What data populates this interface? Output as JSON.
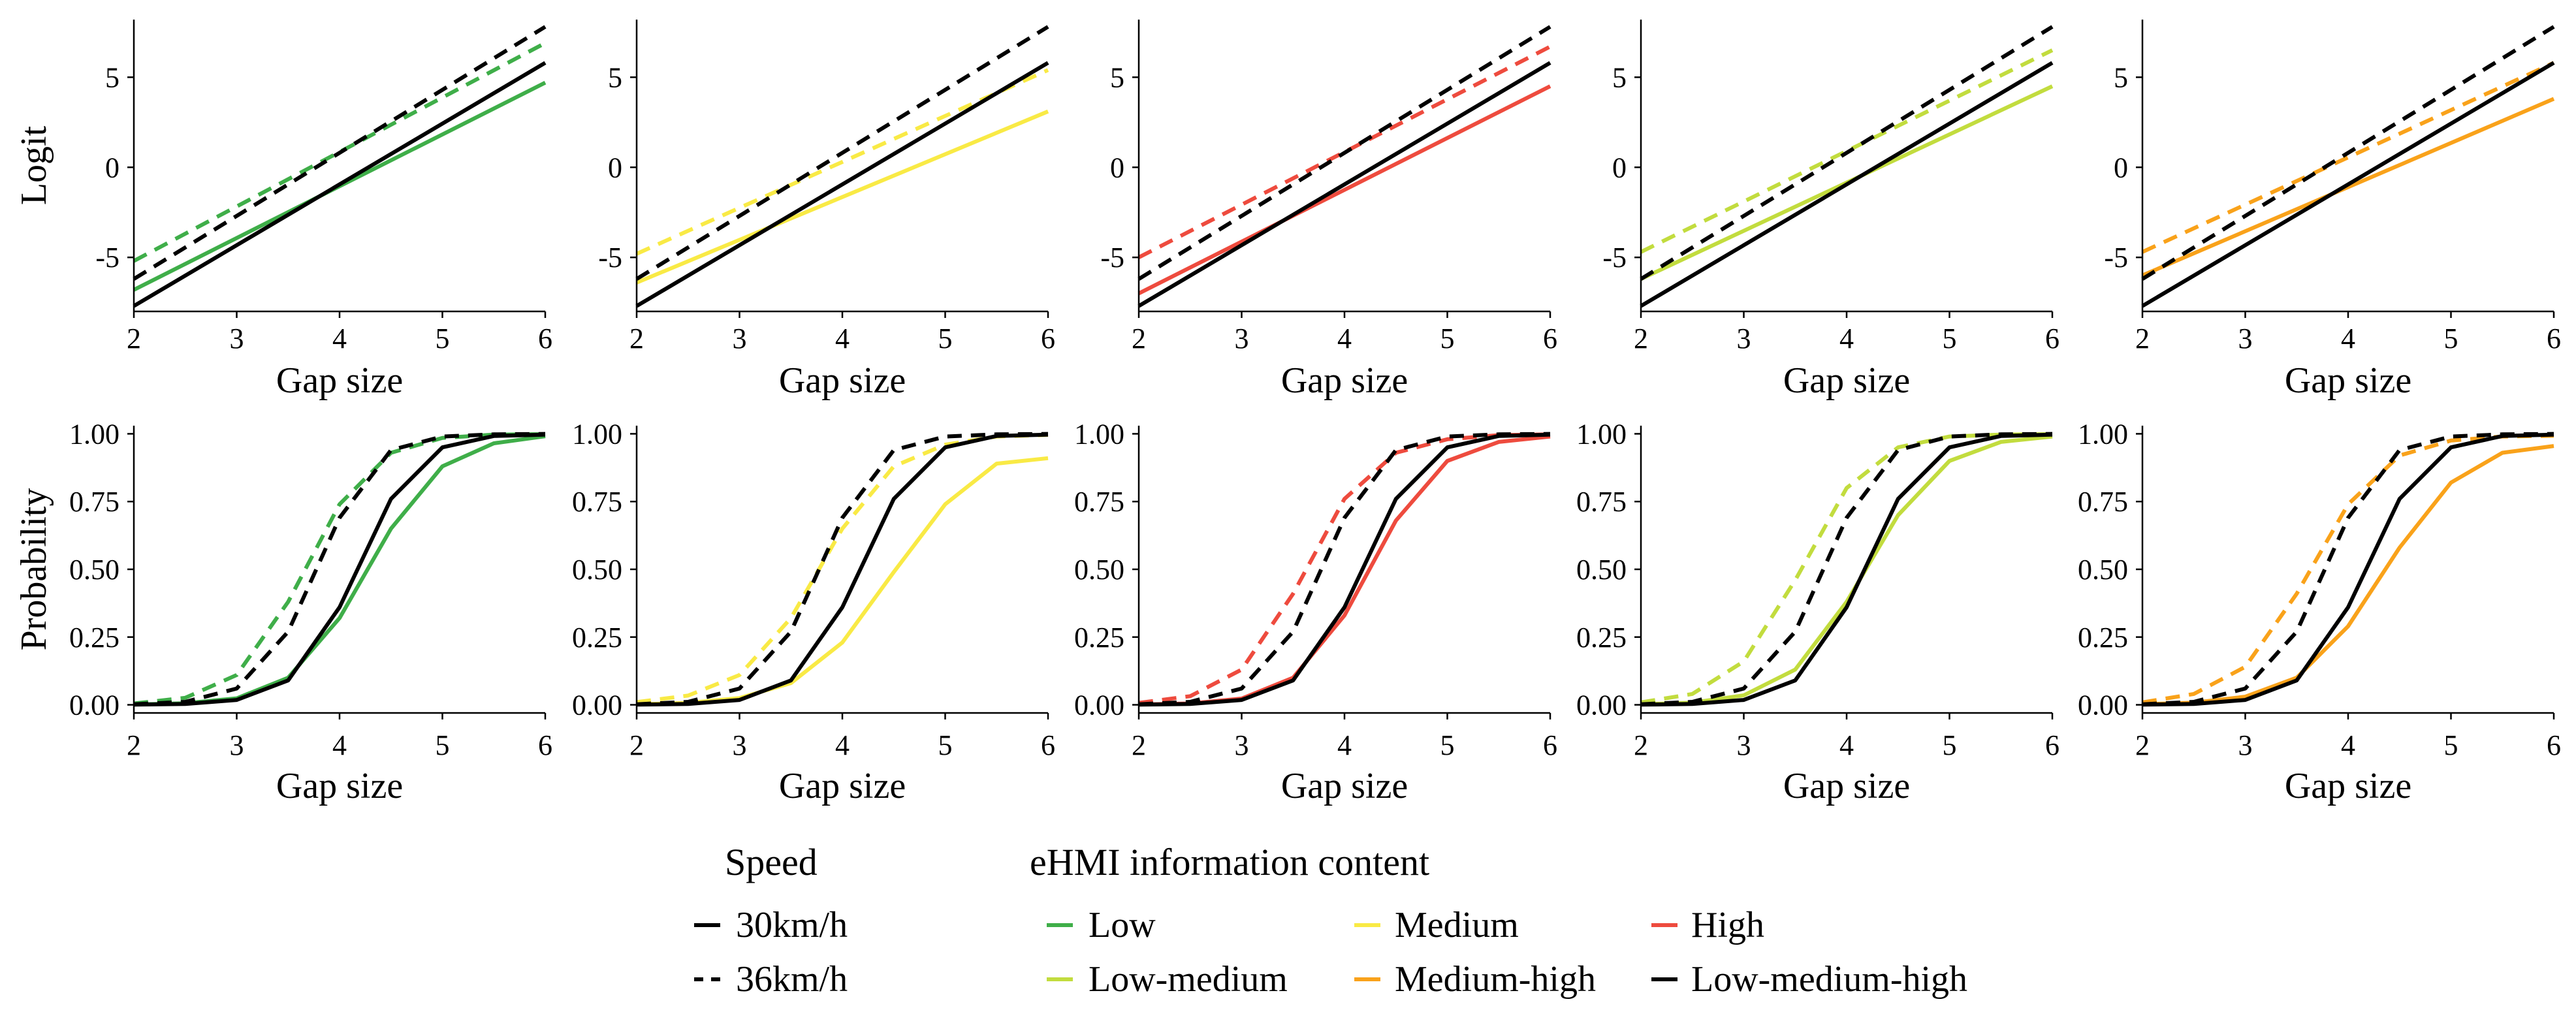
{
  "figure": {
    "legend": {
      "speed_title": "Speed",
      "ehmi_title": "eHMI information content",
      "speed_items": [
        {
          "label": "30km/h",
          "style": "solid"
        },
        {
          "label": "36km/h",
          "style": "dashed"
        }
      ],
      "ehmi_items": [
        {
          "label": "Low",
          "color": "#3fae49"
        },
        {
          "label": "Medium",
          "color": "#f9ea45"
        },
        {
          "label": "High",
          "color": "#ee4b3e"
        },
        {
          "label": "Low-medium",
          "color": "#c2dc3e"
        },
        {
          "label": "Medium-high",
          "color": "#f9a21a"
        },
        {
          "label": "Low-medium-high",
          "color": "#000000"
        }
      ]
    }
  },
  "chart_data": [
    {
      "type": "line",
      "panel": "logit-low",
      "series_label": "Low",
      "color": "#3fae49",
      "xlabel": "Gap size",
      "ylabel": "Logit",
      "xlim": [
        2,
        6
      ],
      "ylim": [
        -8,
        8.2
      ],
      "xticks": [
        2,
        3,
        4,
        5,
        6
      ],
      "yticks": [
        -5,
        0,
        5
      ],
      "ytick_labels": [
        "-5",
        "0",
        "5"
      ],
      "series": [
        {
          "name": "Low 30km/h",
          "speed": "30km/h",
          "x": [
            2,
            6
          ],
          "y": [
            -6.8,
            4.7
          ]
        },
        {
          "name": "Low 36km/h",
          "speed": "36km/h",
          "x": [
            2,
            6
          ],
          "y": [
            -5.2,
            6.9
          ]
        },
        {
          "name": "Low-medium-high 30km/h",
          "speed": "30km/h",
          "x": [
            2,
            6
          ],
          "y": [
            -7.7,
            5.8
          ]
        },
        {
          "name": "Low-medium-high 36km/h",
          "speed": "36km/h",
          "x": [
            2,
            6
          ],
          "y": [
            -6.2,
            7.8
          ]
        }
      ]
    },
    {
      "type": "line",
      "panel": "logit-medium",
      "series_label": "Medium",
      "color": "#f9ea45",
      "xlabel": "Gap size",
      "ylabel": "",
      "xlim": [
        2,
        6
      ],
      "ylim": [
        -8,
        8.2
      ],
      "xticks": [
        2,
        3,
        4,
        5,
        6
      ],
      "yticks": [
        -5,
        0,
        5
      ],
      "ytick_labels": [
        "-5",
        "0",
        "5"
      ],
      "series": [
        {
          "name": "Medium 30km/h",
          "speed": "30km/h",
          "x": [
            2,
            6
          ],
          "y": [
            -6.4,
            3.1
          ]
        },
        {
          "name": "Medium 36km/h",
          "speed": "36km/h",
          "x": [
            2,
            6
          ],
          "y": [
            -4.8,
            5.4
          ]
        },
        {
          "name": "Low-medium-high 30km/h",
          "speed": "30km/h",
          "x": [
            2,
            6
          ],
          "y": [
            -7.7,
            5.8
          ]
        },
        {
          "name": "Low-medium-high 36km/h",
          "speed": "36km/h",
          "x": [
            2,
            6
          ],
          "y": [
            -6.2,
            7.8
          ]
        }
      ]
    },
    {
      "type": "line",
      "panel": "logit-high",
      "series_label": "High",
      "color": "#ee4b3e",
      "xlabel": "Gap size",
      "ylabel": "",
      "xlim": [
        2,
        6
      ],
      "ylim": [
        -8,
        8.2
      ],
      "xticks": [
        2,
        3,
        4,
        5,
        6
      ],
      "yticks": [
        -5,
        0,
        5
      ],
      "ytick_labels": [
        "-5",
        "0",
        "5"
      ],
      "series": [
        {
          "name": "High 30km/h",
          "speed": "30km/h",
          "x": [
            2,
            6
          ],
          "y": [
            -7.0,
            4.5
          ]
        },
        {
          "name": "High 36km/h",
          "speed": "36km/h",
          "x": [
            2,
            6
          ],
          "y": [
            -5.0,
            6.7
          ]
        },
        {
          "name": "Low-medium-high 30km/h",
          "speed": "30km/h",
          "x": [
            2,
            6
          ],
          "y": [
            -7.7,
            5.8
          ]
        },
        {
          "name": "Low-medium-high 36km/h",
          "speed": "36km/h",
          "x": [
            2,
            6
          ],
          "y": [
            -6.2,
            7.8
          ]
        }
      ]
    },
    {
      "type": "line",
      "panel": "logit-low-medium",
      "series_label": "Low-medium",
      "color": "#c2dc3e",
      "xlabel": "Gap size",
      "ylabel": "",
      "xlim": [
        2,
        6
      ],
      "ylim": [
        -8,
        8.2
      ],
      "xticks": [
        2,
        3,
        4,
        5,
        6
      ],
      "yticks": [
        -5,
        0,
        5
      ],
      "ytick_labels": [
        "-5",
        "0",
        "5"
      ],
      "series": [
        {
          "name": "Low-medium 30km/h",
          "speed": "30km/h",
          "x": [
            2,
            6
          ],
          "y": [
            -6.2,
            4.5
          ]
        },
        {
          "name": "Low-medium 36km/h",
          "speed": "36km/h",
          "x": [
            2,
            6
          ],
          "y": [
            -4.7,
            6.5
          ]
        },
        {
          "name": "Low-medium-high 30km/h",
          "speed": "30km/h",
          "x": [
            2,
            6
          ],
          "y": [
            -7.7,
            5.8
          ]
        },
        {
          "name": "Low-medium-high 36km/h",
          "speed": "36km/h",
          "x": [
            2,
            6
          ],
          "y": [
            -6.2,
            7.8
          ]
        }
      ]
    },
    {
      "type": "line",
      "panel": "logit-medium-high",
      "series_label": "Medium-high",
      "color": "#f9a21a",
      "xlabel": "Gap size",
      "ylabel": "",
      "xlim": [
        2,
        6
      ],
      "ylim": [
        -8,
        8.2
      ],
      "xticks": [
        2,
        3,
        4,
        5,
        6
      ],
      "yticks": [
        -5,
        0,
        5
      ],
      "ytick_labels": [
        "-5",
        "0",
        "5"
      ],
      "series": [
        {
          "name": "Medium-high 30km/h",
          "speed": "30km/h",
          "x": [
            2,
            6
          ],
          "y": [
            -6.0,
            3.8
          ]
        },
        {
          "name": "Medium-high 36km/h",
          "speed": "36km/h",
          "x": [
            2,
            6
          ],
          "y": [
            -4.7,
            5.8
          ]
        },
        {
          "name": "Low-medium-high 30km/h",
          "speed": "30km/h",
          "x": [
            2,
            6
          ],
          "y": [
            -7.7,
            5.8
          ]
        },
        {
          "name": "Low-medium-high 36km/h",
          "speed": "36km/h",
          "x": [
            2,
            6
          ],
          "y": [
            -6.2,
            7.8
          ]
        }
      ]
    },
    {
      "type": "line",
      "panel": "probability-low",
      "series_label": "Low",
      "color": "#3fae49",
      "xlabel": "Gap size",
      "ylabel": "Probability",
      "xlim": [
        2,
        6
      ],
      "ylim": [
        -0.03,
        1.03
      ],
      "xticks": [
        2,
        3,
        4,
        5,
        6
      ],
      "yticks": [
        0,
        0.25,
        0.5,
        0.75,
        1.0
      ],
      "ytick_labels": [
        "0.00",
        "0.25",
        "0.50",
        "0.75",
        "1.00"
      ],
      "series": [
        {
          "name": "Low 30km/h",
          "speed": "30km/h",
          "x": [
            2,
            2.5,
            3,
            3.5,
            4,
            4.5,
            5,
            5.5,
            6
          ],
          "y": [
            0.001,
            0.006,
            0.024,
            0.1,
            0.32,
            0.65,
            0.88,
            0.965,
            0.991
          ]
        },
        {
          "name": "Low 36km/h",
          "speed": "36km/h",
          "x": [
            2,
            2.5,
            3,
            3.5,
            4,
            4.5,
            5,
            5.5,
            6
          ],
          "y": [
            0.005,
            0.026,
            0.11,
            0.38,
            0.74,
            0.93,
            0.985,
            0.997,
            0.999
          ]
        },
        {
          "name": "Low-medium-high 30km/h",
          "speed": "30km/h",
          "x": [
            2,
            2.5,
            3,
            3.5,
            4,
            4.5,
            5,
            5.5,
            6
          ],
          "y": [
            0.0005,
            0.003,
            0.018,
            0.09,
            0.36,
            0.76,
            0.95,
            0.992,
            0.997
          ]
        },
        {
          "name": "Low-medium-high 36km/h",
          "speed": "36km/h",
          "x": [
            2,
            2.5,
            3,
            3.5,
            4,
            4.5,
            5,
            5.5,
            6
          ],
          "y": [
            0.002,
            0.011,
            0.06,
            0.27,
            0.69,
            0.94,
            0.99,
            0.998,
            0.9996
          ]
        }
      ]
    },
    {
      "type": "line",
      "panel": "probability-medium",
      "series_label": "Medium",
      "color": "#f9ea45",
      "xlabel": "Gap size",
      "ylabel": "",
      "xlim": [
        2,
        6
      ],
      "ylim": [
        -0.03,
        1.03
      ],
      "xticks": [
        2,
        3,
        4,
        5,
        6
      ],
      "yticks": [
        0,
        0.25,
        0.5,
        0.75,
        1.0
      ],
      "ytick_labels": [
        "0.00",
        "0.25",
        "0.50",
        "0.75",
        "1.00"
      ],
      "series": [
        {
          "name": "Medium 30km/h",
          "speed": "30km/h",
          "x": [
            2,
            2.5,
            3,
            3.5,
            4,
            4.5,
            5,
            5.5,
            6
          ],
          "y": [
            0.002,
            0.007,
            0.025,
            0.08,
            0.23,
            0.49,
            0.74,
            0.89,
            0.91
          ]
        },
        {
          "name": "Medium 36km/h",
          "speed": "36km/h",
          "x": [
            2,
            2.5,
            3,
            3.5,
            4,
            4.5,
            5,
            5.5,
            6
          ],
          "y": [
            0.01,
            0.034,
            0.11,
            0.32,
            0.65,
            0.88,
            0.96,
            0.99,
            0.996
          ]
        },
        {
          "name": "Low-medium-high 30km/h",
          "speed": "30km/h",
          "x": [
            2,
            2.5,
            3,
            3.5,
            4,
            4.5,
            5,
            5.5,
            6
          ],
          "y": [
            0.0005,
            0.003,
            0.018,
            0.09,
            0.36,
            0.76,
            0.95,
            0.992,
            0.997
          ]
        },
        {
          "name": "Low-medium-high 36km/h",
          "speed": "36km/h",
          "x": [
            2,
            2.5,
            3,
            3.5,
            4,
            4.5,
            5,
            5.5,
            6
          ],
          "y": [
            0.002,
            0.011,
            0.06,
            0.27,
            0.69,
            0.94,
            0.99,
            0.998,
            0.9996
          ]
        }
      ]
    },
    {
      "type": "line",
      "panel": "probability-high",
      "series_label": "High",
      "color": "#ee4b3e",
      "xlabel": "Gap size",
      "ylabel": "",
      "xlim": [
        2,
        6
      ],
      "ylim": [
        -0.03,
        1.03
      ],
      "xticks": [
        2,
        3,
        4,
        5,
        6
      ],
      "yticks": [
        0,
        0.25,
        0.5,
        0.75,
        1.0
      ],
      "ytick_labels": [
        "0.00",
        "0.25",
        "0.50",
        "0.75",
        "1.00"
      ],
      "series": [
        {
          "name": "High 30km/h",
          "speed": "30km/h",
          "x": [
            2,
            2.5,
            3,
            3.5,
            4,
            4.5,
            5,
            5.5,
            6
          ],
          "y": [
            0.001,
            0.005,
            0.023,
            0.1,
            0.33,
            0.68,
            0.9,
            0.97,
            0.99
          ]
        },
        {
          "name": "High 36km/h",
          "speed": "36km/h",
          "x": [
            2,
            2.5,
            3,
            3.5,
            4,
            4.5,
            5,
            5.5,
            6
          ],
          "y": [
            0.007,
            0.032,
            0.13,
            0.41,
            0.76,
            0.93,
            0.98,
            0.995,
            0.998
          ]
        },
        {
          "name": "Low-medium-high 30km/h",
          "speed": "30km/h",
          "x": [
            2,
            2.5,
            3,
            3.5,
            4,
            4.5,
            5,
            5.5,
            6
          ],
          "y": [
            0.0005,
            0.003,
            0.018,
            0.09,
            0.36,
            0.76,
            0.95,
            0.992,
            0.997
          ]
        },
        {
          "name": "Low-medium-high 36km/h",
          "speed": "36km/h",
          "x": [
            2,
            2.5,
            3,
            3.5,
            4,
            4.5,
            5,
            5.5,
            6
          ],
          "y": [
            0.002,
            0.011,
            0.06,
            0.27,
            0.69,
            0.94,
            0.99,
            0.998,
            0.9996
          ]
        }
      ]
    },
    {
      "type": "line",
      "panel": "probability-low-medium",
      "series_label": "Low-medium",
      "color": "#c2dc3e",
      "xlabel": "Gap size",
      "ylabel": "",
      "xlim": [
        2,
        6
      ],
      "ylim": [
        -0.03,
        1.03
      ],
      "xticks": [
        2,
        3,
        4,
        5,
        6
      ],
      "yticks": [
        0,
        0.25,
        0.5,
        0.75,
        1.0
      ],
      "ytick_labels": [
        "0.00",
        "0.25",
        "0.50",
        "0.75",
        "1.00"
      ],
      "series": [
        {
          "name": "Low-medium 30km/h",
          "speed": "30km/h",
          "x": [
            2,
            2.5,
            3,
            3.5,
            4,
            4.5,
            5,
            5.5,
            6
          ],
          "y": [
            0.002,
            0.008,
            0.035,
            0.13,
            0.38,
            0.7,
            0.9,
            0.97,
            0.99
          ]
        },
        {
          "name": "Low-medium 36km/h",
          "speed": "36km/h",
          "x": [
            2,
            2.5,
            3,
            3.5,
            4,
            4.5,
            5,
            5.5,
            6
          ],
          "y": [
            0.009,
            0.04,
            0.16,
            0.46,
            0.8,
            0.95,
            0.99,
            0.997,
            0.999
          ]
        },
        {
          "name": "Low-medium-high 30km/h",
          "speed": "30km/h",
          "x": [
            2,
            2.5,
            3,
            3.5,
            4,
            4.5,
            5,
            5.5,
            6
          ],
          "y": [
            0.0005,
            0.003,
            0.018,
            0.09,
            0.36,
            0.76,
            0.95,
            0.992,
            0.997
          ]
        },
        {
          "name": "Low-medium-high 36km/h",
          "speed": "36km/h",
          "x": [
            2,
            2.5,
            3,
            3.5,
            4,
            4.5,
            5,
            5.5,
            6
          ],
          "y": [
            0.002,
            0.011,
            0.06,
            0.27,
            0.69,
            0.94,
            0.99,
            0.998,
            0.9996
          ]
        }
      ]
    },
    {
      "type": "line",
      "panel": "probability-medium-high",
      "series_label": "Medium-high",
      "color": "#f9a21a",
      "xlabel": "Gap size",
      "ylabel": "",
      "xlim": [
        2,
        6
      ],
      "ylim": [
        -0.03,
        1.03
      ],
      "xticks": [
        2,
        3,
        4,
        5,
        6
      ],
      "yticks": [
        0,
        0.25,
        0.5,
        0.75,
        1.0
      ],
      "ytick_labels": [
        "0.00",
        "0.25",
        "0.50",
        "0.75",
        "1.00"
      ],
      "series": [
        {
          "name": "Medium-high 30km/h",
          "speed": "30km/h",
          "x": [
            2,
            2.5,
            3,
            3.5,
            4,
            4.5,
            5,
            5.5,
            6
          ],
          "y": [
            0.002,
            0.008,
            0.03,
            0.1,
            0.29,
            0.58,
            0.82,
            0.93,
            0.955
          ]
        },
        {
          "name": "Medium-high 36km/h",
          "speed": "36km/h",
          "x": [
            2,
            2.5,
            3,
            3.5,
            4,
            4.5,
            5,
            5.5,
            6
          ],
          "y": [
            0.009,
            0.04,
            0.14,
            0.41,
            0.74,
            0.92,
            0.975,
            0.99,
            0.993
          ]
        },
        {
          "name": "Low-medium-high 30km/h",
          "speed": "30km/h",
          "x": [
            2,
            2.5,
            3,
            3.5,
            4,
            4.5,
            5,
            5.5,
            6
          ],
          "y": [
            0.0005,
            0.003,
            0.018,
            0.09,
            0.36,
            0.76,
            0.95,
            0.992,
            0.997
          ]
        },
        {
          "name": "Low-medium-high 36km/h",
          "speed": "36km/h",
          "x": [
            2,
            2.5,
            3,
            3.5,
            4,
            4.5,
            5,
            5.5,
            6
          ],
          "y": [
            0.002,
            0.011,
            0.06,
            0.27,
            0.69,
            0.94,
            0.99,
            0.998,
            0.9996
          ]
        }
      ]
    }
  ]
}
